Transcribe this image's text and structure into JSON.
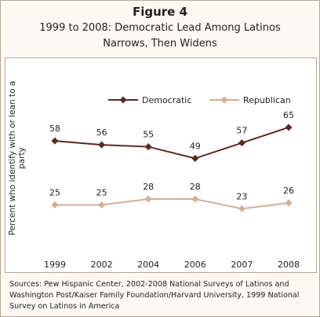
{
  "figure": {
    "label": "Figure 4",
    "subtitle_line1": "1999 to 2008: Democratic Lead Among Latinos",
    "subtitle_line2": "Narrows, Then Widens"
  },
  "source": "Sources:  Pew Hispanic Center, 2002-2008 National Surveys of Latinos and Washington Post/Kaiser Family Foundation/Harvard University, 1999 National Survey on Latinos in America",
  "colors": {
    "democratic": "#5b2a1e",
    "republican": "#d9ad94",
    "border": "#b7a89a",
    "header_bg": "#fdf8f2"
  },
  "chart_data": {
    "type": "line",
    "title": "1999 to 2008: Democratic Lead Among Latinos Narrows, Then Widens",
    "xlabel": "",
    "ylabel": "Percent who identify with or lean to a party",
    "categories": [
      "1999",
      "2002",
      "2004",
      "2006",
      "2007",
      "2008"
    ],
    "ylim": [
      0,
      80
    ],
    "grid": false,
    "legend": "top",
    "series": [
      {
        "name": "Democratic",
        "values": [
          58,
          56,
          55,
          49,
          57,
          65
        ],
        "color": "#5b2a1e",
        "marker": "diamond"
      },
      {
        "name": "Republican",
        "values": [
          25,
          25,
          28,
          28,
          23,
          26
        ],
        "color": "#d9ad94",
        "marker": "diamond"
      }
    ]
  }
}
